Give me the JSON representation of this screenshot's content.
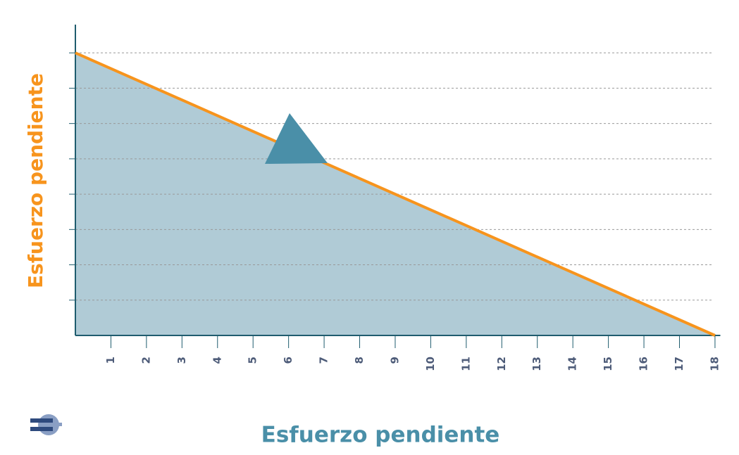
{
  "chart_data": {
    "type": "area",
    "x_label": "Esfuerzo pendiente",
    "y_label": "Esfuerzo pendiente",
    "x": [
      0,
      18
    ],
    "values": [
      8,
      0
    ],
    "color": "#f7941d",
    "fill_color": "#b0cbd6",
    "xlim": [
      0,
      18.15
    ],
    "ylim": [
      0,
      8.8
    ],
    "xticks": [
      1,
      2,
      3,
      4,
      5,
      6,
      7,
      8,
      9,
      10,
      11,
      12,
      13,
      14,
      15,
      16,
      17,
      18
    ],
    "yticks": [
      1,
      2,
      3,
      4,
      5,
      6,
      7,
      8
    ],
    "grid": true
  }
}
